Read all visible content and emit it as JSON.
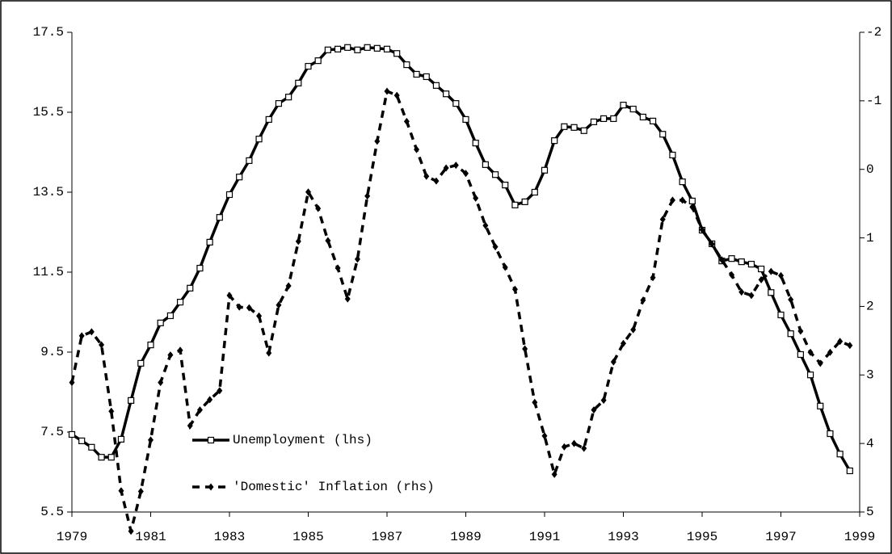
{
  "chart_data": {
    "type": "line",
    "x": [
      1979,
      1979.25,
      1979.5,
      1979.75,
      1980,
      1980.25,
      1980.5,
      1980.75,
      1981,
      1981.25,
      1981.5,
      1981.75,
      1982,
      1982.25,
      1982.5,
      1982.75,
      1983,
      1983.25,
      1983.5,
      1983.75,
      1984,
      1984.25,
      1984.5,
      1984.75,
      1985,
      1985.25,
      1985.5,
      1985.75,
      1986,
      1986.25,
      1986.5,
      1986.75,
      1987,
      1987.25,
      1987.5,
      1987.75,
      1988,
      1988.25,
      1988.5,
      1988.75,
      1989,
      1989.25,
      1989.5,
      1989.75,
      1990,
      1990.25,
      1990.5,
      1990.75,
      1991,
      1991.25,
      1991.5,
      1991.75,
      1992,
      1992.25,
      1992.5,
      1992.75,
      1993,
      1993.25,
      1993.5,
      1993.75,
      1994,
      1994.25,
      1994.5,
      1994.75,
      1995,
      1995.25,
      1995.5,
      1995.75,
      1996,
      1996.25,
      1996.5,
      1996.75,
      1997,
      1997.25,
      1997.5,
      1997.75,
      1998,
      1998.25,
      1998.5,
      1998.75
    ],
    "series": [
      {
        "name": "Unemployment (lhs)",
        "color": "#000000",
        "axis": "y",
        "style": "solid",
        "marker": "square",
        "values": [
          7.44,
          7.28,
          7.12,
          6.87,
          6.87,
          7.32,
          8.29,
          9.22,
          9.68,
          10.23,
          10.41,
          10.75,
          11.1,
          11.6,
          12.25,
          12.87,
          13.44,
          13.88,
          14.29,
          14.83,
          15.32,
          15.72,
          15.88,
          16.23,
          16.65,
          16.79,
          17.06,
          17.08,
          17.12,
          17.06,
          17.12,
          17.1,
          17.08,
          16.97,
          16.69,
          16.45,
          16.39,
          16.17,
          15.96,
          15.72,
          15.32,
          14.73,
          14.19,
          13.94,
          13.68,
          13.18,
          13.26,
          13.5,
          14.05,
          14.79,
          15.14,
          15.12,
          15.04,
          15.26,
          15.34,
          15.34,
          15.68,
          15.58,
          15.38,
          15.28,
          14.95,
          14.43,
          13.76,
          13.28,
          12.55,
          12.21,
          11.78,
          11.84,
          11.76,
          11.7,
          11.58,
          10.99,
          10.43,
          9.96,
          9.44,
          8.93,
          8.15,
          7.46,
          6.95,
          6.53
        ]
      },
      {
        "name": "'Domestic' Inflation (rhs)",
        "color": "#000000",
        "axis": "y2",
        "style": "dashed",
        "marker": "diamond",
        "values": [
          3.11,
          2.43,
          2.37,
          2.56,
          3.53,
          4.69,
          5.28,
          4.7,
          3.95,
          3.11,
          2.71,
          2.64,
          3.74,
          3.51,
          3.36,
          3.23,
          1.84,
          2.01,
          2.02,
          2.14,
          2.68,
          1.98,
          1.7,
          1.05,
          0.33,
          0.57,
          1.04,
          1.44,
          1.89,
          1.31,
          0.39,
          -0.41,
          -1.14,
          -1.08,
          -0.7,
          -0.29,
          0.1,
          0.17,
          -0.02,
          -0.06,
          0.06,
          0.42,
          0.82,
          1.13,
          1.43,
          1.75,
          2.62,
          3.4,
          3.89,
          4.45,
          4.05,
          4.0,
          4.07,
          3.51,
          3.37,
          2.81,
          2.54,
          2.34,
          1.91,
          1.58,
          0.73,
          0.45,
          0.45,
          0.55,
          0.88,
          1.09,
          1.32,
          1.54,
          1.79,
          1.84,
          1.61,
          1.49,
          1.55,
          1.9,
          2.36,
          2.67,
          2.83,
          2.67,
          2.51,
          2.57
        ]
      }
    ],
    "xlim": [
      1979,
      1999
    ],
    "xticks": [
      1979,
      1981,
      1983,
      1985,
      1987,
      1989,
      1991,
      1993,
      1995,
      1997,
      1999
    ],
    "ylim": [
      5.5,
      17.5
    ],
    "yticks": [
      5.5,
      7.5,
      9.5,
      11.5,
      13.5,
      15.5,
      17.5
    ],
    "y2lim": [
      5,
      -2
    ],
    "y2ticks": [
      -2,
      -1,
      0,
      1,
      2,
      3,
      4,
      5
    ],
    "grid": false,
    "legend": "lower left"
  }
}
